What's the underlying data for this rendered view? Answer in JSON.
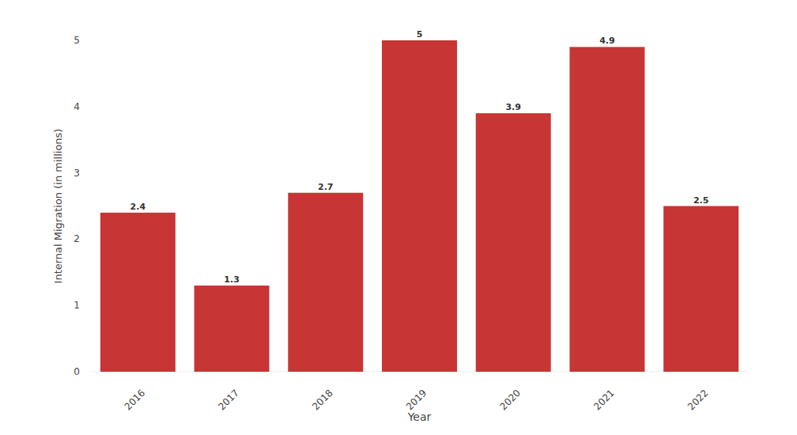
{
  "chart_data": {
    "type": "bar",
    "x_label": "Year",
    "y_label": "Internal Migration (in millions)",
    "categories": [
      "2016",
      "2017",
      "2018",
      "2019",
      "2020",
      "2021",
      "2022"
    ],
    "values": [
      2.4,
      1.3,
      2.7,
      5,
      3.9,
      4.9,
      2.5
    ],
    "color": "#c73535",
    "ylim": [
      0,
      5
    ],
    "yticks": [
      0,
      1,
      2,
      3,
      4,
      5
    ],
    "grid": false,
    "data_labels": true
  }
}
